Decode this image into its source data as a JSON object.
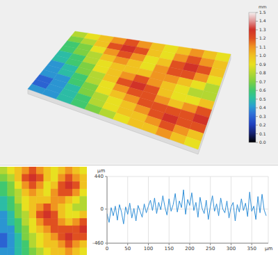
{
  "chart_data": [
    {
      "type": "heatmap",
      "cells": [
        [
          0.8,
          0.9,
          1.0,
          1.1,
          1.2,
          1.1,
          1.0,
          0.9,
          1.0,
          1.1,
          1.0,
          0.9
        ],
        [
          0.7,
          0.8,
          1.0,
          1.2,
          1.3,
          1.2,
          1.0,
          0.9,
          1.1,
          1.2,
          1.1,
          1.0
        ],
        [
          0.6,
          0.7,
          0.9,
          1.1,
          1.2,
          1.1,
          0.9,
          1.0,
          1.2,
          1.3,
          1.2,
          1.0
        ],
        [
          0.6,
          0.7,
          0.8,
          1.0,
          1.1,
          1.0,
          0.9,
          1.1,
          1.2,
          1.2,
          1.1,
          0.9
        ],
        [
          0.5,
          0.6,
          0.8,
          0.9,
          1.0,
          1.0,
          1.0,
          1.1,
          1.1,
          1.0,
          0.9,
          0.8
        ],
        [
          0.5,
          0.6,
          0.7,
          0.9,
          1.0,
          1.1,
          1.2,
          1.1,
          1.0,
          0.9,
          0.8,
          0.8
        ],
        [
          0.4,
          0.5,
          0.7,
          0.8,
          1.0,
          1.2,
          1.3,
          1.2,
          1.0,
          0.9,
          0.9,
          1.0
        ],
        [
          0.4,
          0.5,
          0.6,
          0.8,
          0.9,
          1.1,
          1.2,
          1.2,
          1.1,
          1.0,
          1.1,
          1.2
        ],
        [
          0.4,
          0.4,
          0.6,
          0.7,
          0.9,
          1.0,
          1.1,
          1.2,
          1.2,
          1.2,
          1.2,
          1.3
        ],
        [
          0.3,
          0.4,
          0.5,
          0.7,
          0.8,
          0.9,
          1.0,
          1.1,
          1.2,
          1.3,
          1.2,
          1.2
        ],
        [
          0.3,
          0.4,
          0.5,
          0.6,
          0.8,
          0.9,
          1.0,
          1.0,
          1.1,
          1.2,
          1.1,
          1.0
        ],
        [
          0.4,
          0.4,
          0.5,
          0.6,
          0.7,
          0.8,
          0.9,
          1.0,
          1.0,
          1.1,
          1.0,
          0.9
        ]
      ],
      "colorbar": {
        "label": "mm",
        "range": [
          0,
          1.5
        ],
        "ticks": [
          {
            "value": 0,
            "label": "0.0"
          },
          0.1,
          0.2,
          0.3,
          0.4,
          0.5,
          0.6,
          0.7,
          0.8,
          0.9,
          {
            "value": 1,
            "label": "1.0"
          },
          1.1,
          1.2,
          1.3,
          1.4,
          1.5
        ]
      }
    },
    {
      "type": "line",
      "x": [
        0,
        5,
        10,
        15,
        20,
        25,
        30,
        35,
        40,
        45,
        50,
        55,
        60,
        65,
        70,
        75,
        80,
        85,
        90,
        95,
        100,
        105,
        110,
        115,
        120,
        125,
        130,
        135,
        140,
        145,
        150,
        155,
        160,
        165,
        170,
        175,
        180,
        185,
        190,
        195,
        200,
        205,
        210,
        215,
        220,
        225,
        230,
        235,
        240,
        245,
        250,
        255,
        260,
        265,
        270,
        275,
        280,
        285,
        290,
        295,
        300,
        305,
        310,
        315,
        320,
        325,
        330,
        335,
        340,
        345,
        350,
        355,
        360,
        365,
        370,
        375,
        380,
        385
      ],
      "values": [
        -60,
        -180,
        20,
        -90,
        40,
        -150,
        60,
        -40,
        -200,
        30,
        -70,
        80,
        -120,
        10,
        -160,
        50,
        -30,
        -110,
        70,
        -50,
        40,
        120,
        -20,
        150,
        -60,
        90,
        -10,
        180,
        30,
        -80,
        140,
        -30,
        60,
        210,
        -40,
        110,
        20,
        260,
        -70,
        130,
        50,
        220,
        -20,
        90,
        -110,
        160,
        10,
        -60,
        120,
        -140,
        40,
        180,
        -30,
        70,
        -90,
        150,
        0,
        -50,
        110,
        -120,
        30,
        90,
        -160,
        60,
        -40,
        140,
        -20,
        80,
        -100,
        230,
        -30,
        40,
        -140,
        170,
        -50,
        200,
        -10,
        -90
      ],
      "color": "#2f8fd8",
      "xlim": [
        0,
        390
      ],
      "xticks": [
        0,
        50,
        100,
        150,
        200,
        250,
        300,
        350
      ],
      "ylim": [
        -460,
        440
      ],
      "yticks": [
        -460,
        0,
        440
      ],
      "xlabel": "µm",
      "ylabel": "µm",
      "grid": true
    }
  ]
}
